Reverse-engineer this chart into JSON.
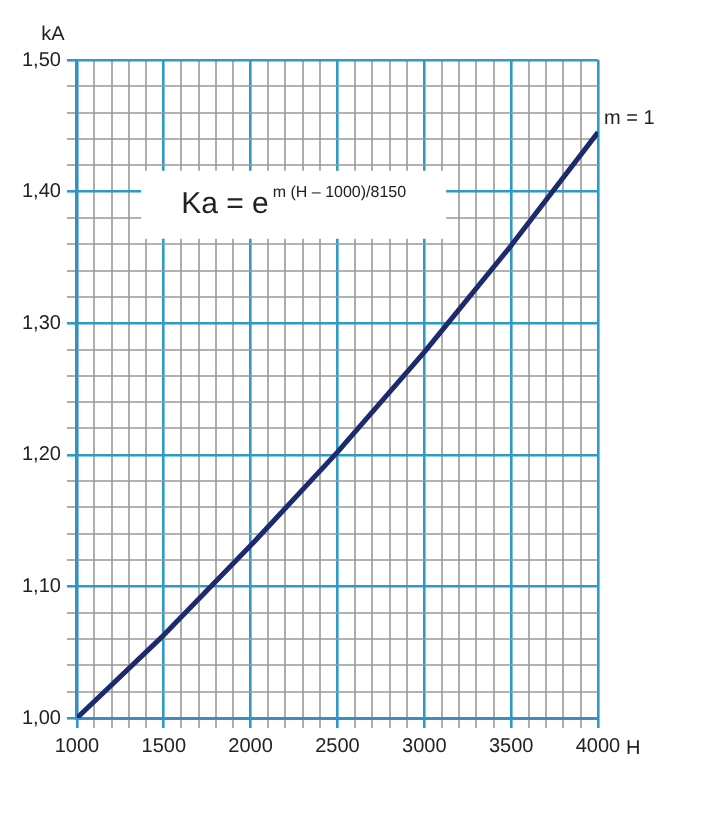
{
  "chart_data": {
    "type": "line",
    "xlabel": "H",
    "ylabel": "kA",
    "x": [
      1000,
      1500,
      2000,
      2500,
      3000,
      3500,
      4000
    ],
    "series": [
      {
        "color": "#1c2a6e",
        "values": [
          1.0,
          1.063,
          1.131,
          1.202,
          1.278,
          1.359,
          1.445
        ]
      }
    ],
    "xlim": [
      1000,
      4000
    ],
    "xticks": [
      1000,
      {
        "value": 1100,
        "label": null
      },
      {
        "value": 1200,
        "label": null
      },
      {
        "value": 1300,
        "label": null
      },
      {
        "value": 1400,
        "label": null
      },
      1500,
      {
        "value": 1600,
        "label": null
      },
      {
        "value": 1700,
        "label": null
      },
      {
        "value": 1800,
        "label": null
      },
      {
        "value": 1900,
        "label": null
      },
      2000,
      {
        "value": 2100,
        "label": null
      },
      {
        "value": 2200,
        "label": null
      },
      {
        "value": 2300,
        "label": null
      },
      {
        "value": 2400,
        "label": null
      },
      2500,
      {
        "value": 2600,
        "label": null
      },
      {
        "value": 2700,
        "label": null
      },
      {
        "value": 2800,
        "label": null
      },
      {
        "value": 2900,
        "label": null
      },
      3000,
      {
        "value": 3100,
        "label": null
      },
      {
        "value": 3200,
        "label": null
      },
      {
        "value": 3300,
        "label": null
      },
      {
        "value": 3400,
        "label": null
      },
      3500,
      {
        "value": 3600,
        "label": null
      },
      {
        "value": 3700,
        "label": null
      },
      {
        "value": 3800,
        "label": null
      },
      {
        "value": 3900,
        "label": null
      },
      4000
    ],
    "ylim": [
      1.0,
      1.5
    ],
    "yticks": [
      {
        "value": 1.0,
        "label": "1,00"
      },
      {
        "value": 1.02,
        "label": null
      },
      {
        "value": 1.04,
        "label": null
      },
      {
        "value": 1.06,
        "label": null
      },
      {
        "value": 1.08,
        "label": null
      },
      {
        "value": 1.1,
        "label": "1,10"
      },
      {
        "value": 1.12,
        "label": null
      },
      {
        "value": 1.14,
        "label": null
      },
      {
        "value": 1.16,
        "label": null
      },
      {
        "value": 1.18,
        "label": null
      },
      {
        "value": 1.2,
        "label": "1,20"
      },
      {
        "value": 1.22,
        "label": null
      },
      {
        "value": 1.24,
        "label": null
      },
      {
        "value": 1.26,
        "label": null
      },
      {
        "value": 1.28,
        "label": null
      },
      {
        "value": 1.3,
        "label": "1,30"
      },
      {
        "value": 1.32,
        "label": null
      },
      {
        "value": 1.34,
        "label": null
      },
      {
        "value": 1.36,
        "label": null
      },
      {
        "value": 1.38,
        "label": null
      },
      {
        "value": 1.4,
        "label": "1,40"
      },
      {
        "value": 1.42,
        "label": null
      },
      {
        "value": 1.44,
        "label": null
      },
      {
        "value": 1.46,
        "label": null
      },
      {
        "value": 1.48,
        "label": null
      },
      {
        "value": 1.5,
        "label": "1,50"
      }
    ],
    "grid": true,
    "marker": "none",
    "line_style": "solid",
    "annotations": [
      "Ka = e$^{m (H – 1000)/8150}$",
      "m = 1"
    ]
  }
}
